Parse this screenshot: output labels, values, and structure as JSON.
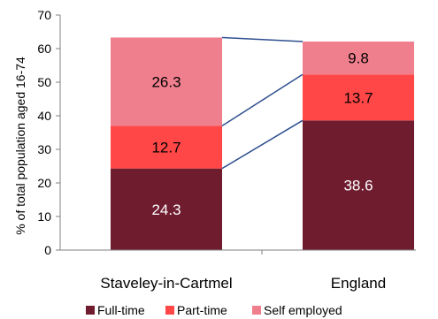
{
  "chart_data": {
    "type": "bar",
    "stacked": true,
    "categories": [
      "Staveley-in-Cartmel",
      "England"
    ],
    "series": [
      {
        "name": "Full-time",
        "values": [
          24.3,
          38.6
        ],
        "color": "#6f1c2f",
        "label_color": "#ffffff"
      },
      {
        "name": "Part-time",
        "values": [
          12.7,
          13.7
        ],
        "color": "#ff4747",
        "label_color": "#000000"
      },
      {
        "name": "Self employed",
        "values": [
          26.3,
          9.8
        ],
        "color": "#f07f8e",
        "label_color": "#000000"
      }
    ],
    "ylabel": "% of total population aged 16-74",
    "xlabel": "",
    "title": "",
    "ylim": [
      0,
      70
    ],
    "yticks": [
      0,
      10,
      20,
      30,
      40,
      50,
      60,
      70
    ],
    "series_lines": true,
    "series_line_color": "#2f4f8f",
    "grid": false,
    "legend_position": "bottom"
  }
}
